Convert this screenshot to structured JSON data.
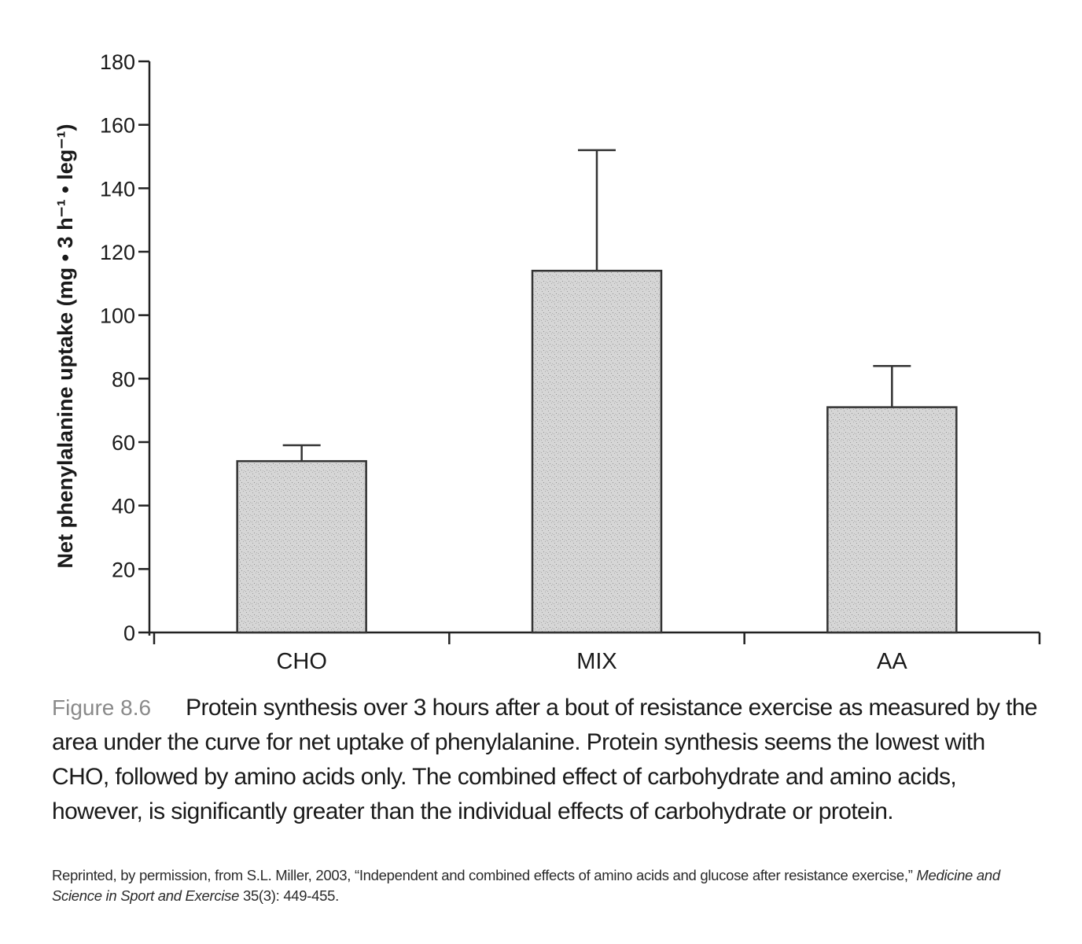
{
  "chart_data": {
    "type": "bar",
    "categories": [
      "CHO",
      "MIX",
      "AA"
    ],
    "values": [
      54,
      114,
      71
    ],
    "error_upper": [
      59,
      152,
      84
    ],
    "ylabel": "Net phenylalanine uptake (mg • 3 h⁻¹ • leg⁻¹)",
    "ylim": [
      0,
      180
    ],
    "yticks": [
      0,
      20,
      40,
      60,
      80,
      100,
      120,
      140,
      160,
      180
    ],
    "grid": false,
    "bar_fill": "#d4d4d4",
    "bar_edge": "#333333"
  },
  "caption": {
    "figure_number": "Figure 8.6",
    "text": "Protein synthesis over 3 hours after a bout of resistance exercise as measured by the area under the curve for net uptake of phenylalanine. Protein synthesis seems the lowest with CHO, followed by amino acids only. The combined effect of carbohydrate and amino acids, however, is significantly greater than the individual effects of carbohydrate or protein."
  },
  "credit": {
    "prefix": "Reprinted, by permission, from S.L. Miller, 2003, “Independent and combined effects of amino acids and glucose after resistance exercise,” ",
    "journal": "Medicine and Science in Sport and Exercise",
    "suffix": " 35(3): 449-455."
  }
}
